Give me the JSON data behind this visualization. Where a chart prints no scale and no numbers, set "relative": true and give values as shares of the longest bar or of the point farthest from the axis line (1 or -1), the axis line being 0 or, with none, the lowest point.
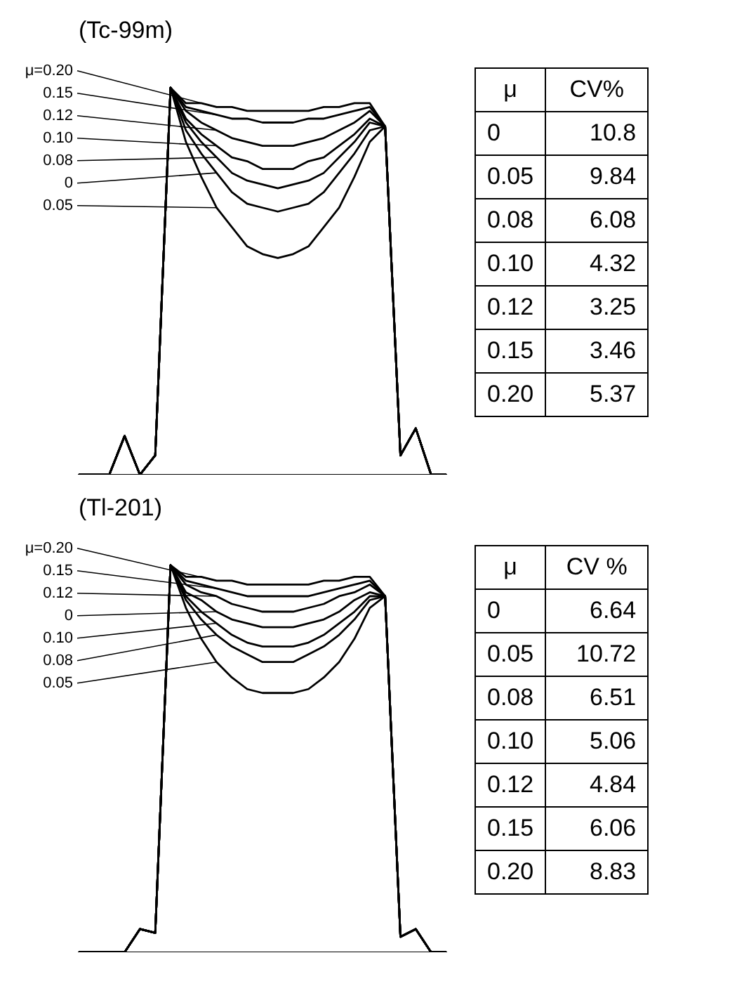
{
  "chart_data": [
    {
      "type": "line",
      "title": "(Tc-99m)",
      "relative": true,
      "legend": false,
      "grid": false,
      "marker": "none",
      "categories": [
        null,
        null,
        null,
        null,
        null,
        null,
        null,
        null,
        null,
        null,
        null,
        null,
        null,
        null,
        null,
        null,
        null,
        null,
        null,
        null,
        null,
        null,
        null,
        null,
        null
      ],
      "series": [
        {
          "name": "μ=0.20",
          "color": "#000000",
          "values": [
            0,
            0,
            0,
            0.1,
            0,
            0.05,
            1,
            0.96,
            0.96,
            0.95,
            0.95,
            0.94,
            0.94,
            0.94,
            0.94,
            0.94,
            0.95,
            0.95,
            0.96,
            0.96,
            0.9,
            0.05,
            0.12,
            0,
            0
          ]
        },
        {
          "name": "0.15",
          "color": "#000000",
          "values": [
            0,
            0,
            0,
            0.1,
            0,
            0.05,
            1,
            0.95,
            0.94,
            0.93,
            0.92,
            0.92,
            0.91,
            0.91,
            0.91,
            0.92,
            0.92,
            0.93,
            0.94,
            0.95,
            0.9,
            0.05,
            0.12,
            0,
            0
          ]
        },
        {
          "name": "0.12",
          "color": "#000000",
          "values": [
            0,
            0,
            0,
            0.1,
            0,
            0.05,
            1,
            0.94,
            0.91,
            0.89,
            0.87,
            0.86,
            0.85,
            0.85,
            0.85,
            0.86,
            0.87,
            0.89,
            0.91,
            0.94,
            0.9,
            0.05,
            0.12,
            0,
            0
          ]
        },
        {
          "name": "0.10",
          "color": "#000000",
          "values": [
            0,
            0,
            0,
            0.1,
            0,
            0.05,
            1,
            0.92,
            0.88,
            0.85,
            0.82,
            0.81,
            0.79,
            0.79,
            0.79,
            0.81,
            0.82,
            0.85,
            0.88,
            0.92,
            0.9,
            0.05,
            0.12,
            0,
            0
          ]
        },
        {
          "name": "0.08",
          "color": "#000000",
          "values": [
            0,
            0,
            0,
            0.1,
            0,
            0.05,
            1,
            0.91,
            0.86,
            0.82,
            0.78,
            0.76,
            0.75,
            0.74,
            0.75,
            0.76,
            0.78,
            0.82,
            0.86,
            0.91,
            0.9,
            0.05,
            0.12,
            0,
            0
          ]
        },
        {
          "name": "0",
          "color": "#000000",
          "values": [
            0,
            0,
            0,
            0.1,
            0,
            0.05,
            1,
            0.89,
            0.83,
            0.78,
            0.73,
            0.7,
            0.69,
            0.68,
            0.69,
            0.7,
            0.73,
            0.78,
            0.83,
            0.89,
            0.9,
            0.05,
            0.12,
            0,
            0
          ]
        },
        {
          "name": "0.05",
          "color": "#000000",
          "values": [
            0,
            0,
            0,
            0.1,
            0,
            0.05,
            1,
            0.86,
            0.77,
            0.69,
            0.64,
            0.59,
            0.57,
            0.56,
            0.57,
            0.59,
            0.64,
            0.69,
            0.77,
            0.86,
            0.9,
            0.05,
            0.12,
            0,
            0
          ]
        }
      ]
    },
    {
      "type": "other",
      "xlabel": "μ",
      "ylabel": "CV%",
      "categories": [
        "0",
        "0.05",
        "0.08",
        "0.10",
        "0.12",
        "0.15",
        "0.20"
      ],
      "values": [
        10.8,
        9.84,
        6.08,
        4.32,
        3.25,
        3.46,
        5.37
      ],
      "data_labels": true
    },
    {
      "type": "line",
      "title": "(Tl-201)",
      "relative": true,
      "legend": false,
      "grid": false,
      "marker": "none",
      "categories": [
        null,
        null,
        null,
        null,
        null,
        null,
        null,
        null,
        null,
        null,
        null,
        null,
        null,
        null,
        null,
        null,
        null,
        null,
        null,
        null,
        null,
        null,
        null,
        null,
        null
      ],
      "series": [
        {
          "name": "μ=0.20",
          "color": "#000000",
          "values": [
            0,
            0,
            0,
            0,
            0.06,
            0.05,
            1,
            0.97,
            0.97,
            0.96,
            0.96,
            0.95,
            0.95,
            0.95,
            0.95,
            0.95,
            0.96,
            0.96,
            0.97,
            0.97,
            0.92,
            0.04,
            0.06,
            0,
            0
          ]
        },
        {
          "name": "0.15",
          "color": "#000000",
          "values": [
            0,
            0,
            0,
            0,
            0.06,
            0.05,
            1,
            0.96,
            0.95,
            0.94,
            0.93,
            0.92,
            0.92,
            0.92,
            0.92,
            0.92,
            0.93,
            0.94,
            0.95,
            0.96,
            0.92,
            0.04,
            0.06,
            0,
            0
          ]
        },
        {
          "name": "0.12",
          "color": "#000000",
          "values": [
            0,
            0,
            0,
            0,
            0.06,
            0.05,
            1,
            0.95,
            0.93,
            0.92,
            0.9,
            0.89,
            0.88,
            0.88,
            0.88,
            0.89,
            0.9,
            0.92,
            0.93,
            0.95,
            0.92,
            0.04,
            0.06,
            0,
            0
          ]
        },
        {
          "name": "0",
          "color": "#000000",
          "values": [
            0,
            0,
            0,
            0,
            0.06,
            0.05,
            1,
            0.93,
            0.91,
            0.88,
            0.86,
            0.85,
            0.84,
            0.84,
            0.84,
            0.85,
            0.86,
            0.88,
            0.91,
            0.93,
            0.92,
            0.04,
            0.06,
            0,
            0
          ]
        },
        {
          "name": "0.10",
          "color": "#000000",
          "values": [
            0,
            0,
            0,
            0,
            0.06,
            0.05,
            1,
            0.92,
            0.88,
            0.85,
            0.82,
            0.8,
            0.79,
            0.79,
            0.79,
            0.8,
            0.82,
            0.85,
            0.88,
            0.92,
            0.92,
            0.04,
            0.06,
            0,
            0
          ]
        },
        {
          "name": "0.08",
          "color": "#000000",
          "values": [
            0,
            0,
            0,
            0,
            0.06,
            0.05,
            1,
            0.91,
            0.86,
            0.82,
            0.79,
            0.77,
            0.75,
            0.75,
            0.75,
            0.77,
            0.79,
            0.82,
            0.86,
            0.91,
            0.92,
            0.04,
            0.06,
            0,
            0
          ]
        },
        {
          "name": "0.05",
          "color": "#000000",
          "values": [
            0,
            0,
            0,
            0,
            0.06,
            0.05,
            1,
            0.89,
            0.81,
            0.75,
            0.71,
            0.68,
            0.67,
            0.67,
            0.67,
            0.68,
            0.71,
            0.75,
            0.81,
            0.89,
            0.92,
            0.04,
            0.06,
            0,
            0
          ]
        }
      ]
    },
    {
      "type": "other",
      "xlabel": "μ",
      "ylabel": "CV %",
      "categories": [
        "0",
        "0.05",
        "0.08",
        "0.10",
        "0.12",
        "0.15",
        "0.20"
      ],
      "values": [
        6.64,
        10.72,
        6.51,
        5.06,
        4.84,
        6.06,
        8.83
      ],
      "data_labels": true
    }
  ]
}
